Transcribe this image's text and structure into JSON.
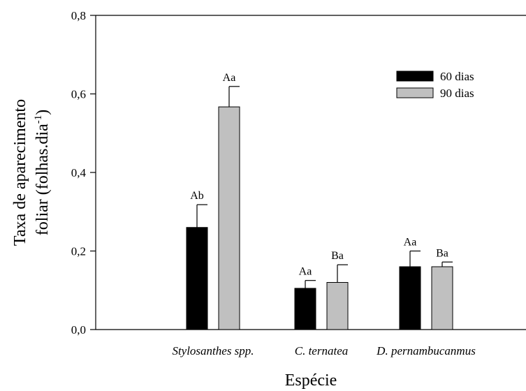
{
  "chart_data": {
    "type": "bar",
    "title": "",
    "xlabel": "Espécie",
    "ylabel_line1": "Taxa de aparecimento",
    "ylabel_line2_main": "foliar (folhas.dia",
    "ylabel_line2_sup": "-1",
    "ylabel_line2_end": ")",
    "ylim": [
      0,
      0.8
    ],
    "yticks": [
      0.0,
      0.2,
      0.4,
      0.6,
      0.8
    ],
    "ytick_labels": [
      "0,0",
      "0,2",
      "0,4",
      "0,6",
      "0,8"
    ],
    "categories": [
      "Stylosanthes spp.",
      "C. ternatea",
      "D. pernambucanmus"
    ],
    "series": [
      {
        "name": "60 dias",
        "color": "#000000",
        "values": [
          0.26,
          0.105,
          0.16
        ],
        "errors": [
          0.058,
          0.02,
          0.04
        ],
        "labels": [
          "Ab",
          "Aa",
          "Aa"
        ]
      },
      {
        "name": "90 dias",
        "color": "#c0c0c0",
        "values": [
          0.567,
          0.12,
          0.16
        ],
        "errors": [
          0.052,
          0.045,
          0.012
        ],
        "labels": [
          "Aa",
          "Ba",
          "Ba"
        ]
      }
    ],
    "legend_position": "top-right",
    "grid": false
  }
}
